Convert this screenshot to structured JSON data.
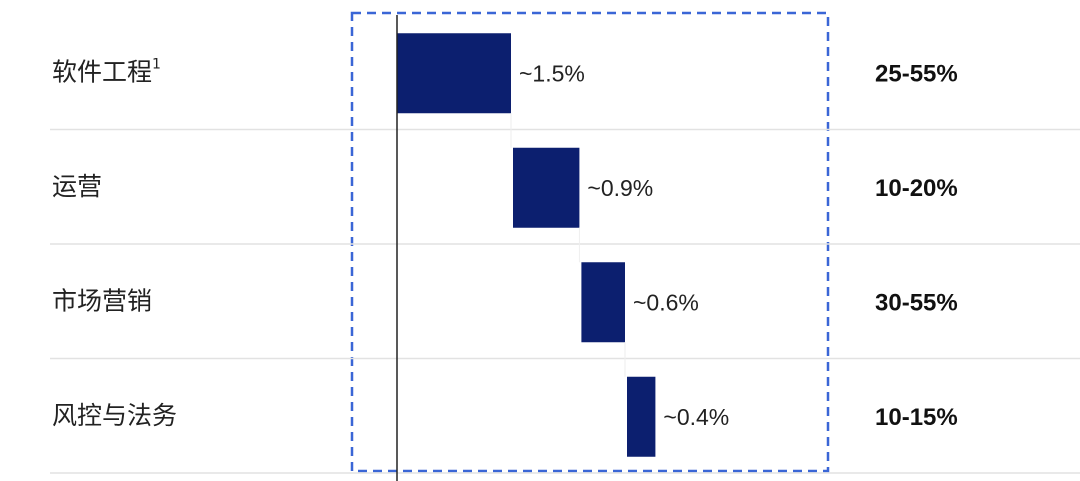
{
  "chart_data": {
    "type": "waterfall",
    "categories": [
      "软件工程",
      "运营",
      "市场营销",
      "风控与法务"
    ],
    "category_footnotes": [
      "1",
      null,
      null,
      null
    ],
    "values": [
      1.5,
      0.9,
      0.6,
      0.4
    ],
    "value_labels": [
      "~1.5%",
      "~0.9%",
      "~0.6%",
      "~0.4%"
    ],
    "ranges": [
      "25-55%",
      "10-20%",
      "30-55%",
      "10-15%"
    ],
    "color": "#0c1f6f"
  }
}
